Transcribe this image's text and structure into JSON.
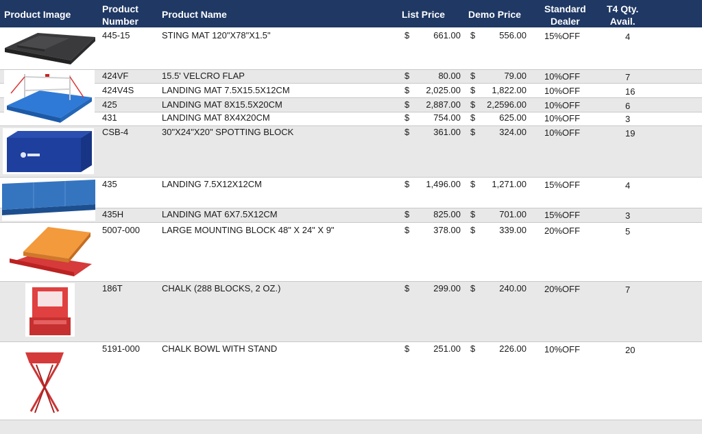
{
  "header": {
    "image": "Product Image",
    "number": "Product\nNumber",
    "name": "Product Name",
    "list": "List Price",
    "demo": "Demo Price",
    "dealer": "Standard\nDealer",
    "qty": "T4 Qty.\nAvail."
  },
  "currency": "$",
  "colors": {
    "header_bg": "#1f3864",
    "band_gray": "#e8e8e8"
  },
  "rows": [
    {
      "number": "445-15",
      "name": "STING MAT 120\"X78\"X1.5\"",
      "list": "661.00",
      "demo": "556.00",
      "dealer": "15%OFF",
      "qty": "4"
    },
    {
      "number": "424VF",
      "name": "15.5' VELCRO FLAP",
      "list": "80.00",
      "demo": "79.00",
      "dealer": "10%OFF",
      "qty": "7"
    },
    {
      "number": "424V4S",
      "name": "LANDING MAT 7.5X15.5X12CM",
      "list": "2,025.00",
      "demo": "1,822.00",
      "dealer": "10%OFF",
      "qty": "16"
    },
    {
      "number": "425",
      "name": "LANDING MAT 8X15.5X20CM",
      "list": "2,887.00",
      "demo": "2,2596.00",
      "dealer": "10%OFF",
      "qty": "6"
    },
    {
      "number": "431",
      "name": "LANDING MAT 8X4X20CM",
      "list": "754.00",
      "demo": "625.00",
      "dealer": "10%OFF",
      "qty": "3"
    },
    {
      "number": "CSB-4",
      "name": "30\"X24\"X20\" SPOTTING BLOCK",
      "list": "361.00",
      "demo": "324.00",
      "dealer": "10%OFF",
      "qty": "19"
    },
    {
      "number": "435",
      "name": "LANDING 7.5X12X12CM",
      "list": "1,496.00",
      "demo": "1,271.00",
      "dealer": "15%OFF",
      "qty": "4"
    },
    {
      "number": "435H",
      "name": "LANDING MAT 6X7.5X12CM",
      "list": "825.00",
      "demo": "701.00",
      "dealer": "15%OFF",
      "qty": "3"
    },
    {
      "number": "5007-000",
      "name": "LARGE MOUNTING BLOCK 48\" X 24\" X 9\"",
      "list": "378.00",
      "demo": "339.00",
      "dealer": "20%OFF",
      "qty": "5"
    },
    {
      "number": "186T",
      "name": "CHALK (288 BLOCKS, 2 OZ.)",
      "list": "299.00",
      "demo": "240.00",
      "dealer": "20%OFF",
      "qty": "7"
    },
    {
      "number": "5191-000",
      "name": "CHALK BOWL WITH STAND",
      "list": "251.00",
      "demo": "226.00",
      "dealer": "10%OFF",
      "qty": "20"
    }
  ],
  "images": [
    {
      "name": "sting-mat-image"
    },
    {
      "name": "bars-landing-mat-image"
    },
    {
      "name": "spotting-block-image"
    },
    {
      "name": "landing-mat-blue-image"
    },
    {
      "name": "mounting-block-image"
    },
    {
      "name": "chalk-box-image"
    },
    {
      "name": "chalk-bowl-stand-image"
    }
  ]
}
